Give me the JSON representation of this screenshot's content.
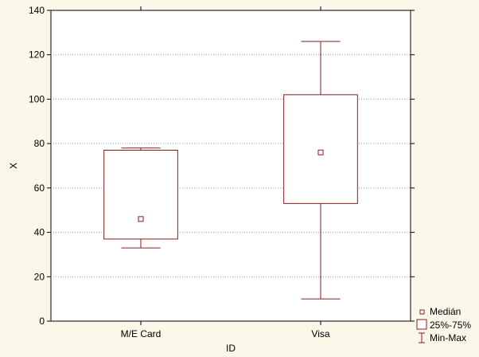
{
  "chart_data": {
    "type": "boxplot",
    "title": "",
    "xlabel": "ID",
    "ylabel": "X",
    "ylim": [
      0,
      140
    ],
    "yticks": [
      0,
      20,
      40,
      60,
      80,
      100,
      120,
      140
    ],
    "grid": true,
    "categories": [
      "M/E Card",
      "Visa"
    ],
    "boxes": [
      {
        "category": "M/E Card",
        "min": 33,
        "q1": 37,
        "median": 46,
        "q3": 77,
        "max": 78
      },
      {
        "category": "Visa",
        "min": 10,
        "q1": 53,
        "median": 76,
        "q3": 102,
        "max": 126
      }
    ],
    "legend": {
      "placement": "bottom-right",
      "entries": [
        {
          "label": "Medián",
          "symbol": "small-square"
        },
        {
          "label": "25%-75%",
          "symbol": "box"
        },
        {
          "label": "Min-Max",
          "symbol": "whisker"
        }
      ]
    },
    "colors": {
      "series": "#8b1a1a",
      "grid": "#9a9a9a",
      "background": "#fbf8ea",
      "plot_bg": "#ffffff"
    }
  }
}
